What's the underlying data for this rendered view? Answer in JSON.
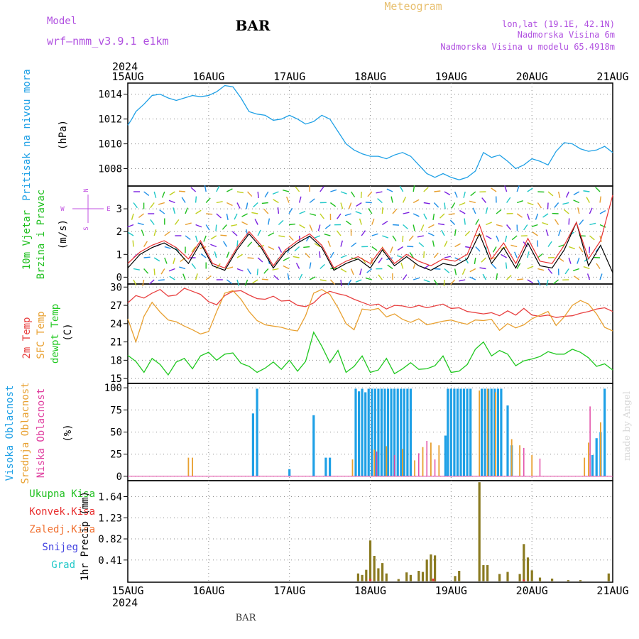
{
  "header": {
    "model_label": "Model",
    "model_name": "wrf–nmm_v3.9.1 e1km",
    "station": "BAR",
    "product": "Meteogram",
    "lonlat": "lon,lat (19.1E, 42.1N)",
    "altitude": "Nadmorska Visina 6m",
    "model_altitude": "Nadmorska Visina u modelu 65.4918m",
    "footer": "BAR",
    "credit": "made by Angel"
  },
  "time_axis": {
    "year": "2024",
    "ticks": [
      "15AUG",
      "16AUG",
      "17AUG",
      "18AUG",
      "19AUG",
      "20AUG",
      "21AUG"
    ]
  },
  "colors": {
    "pressure": "#1ea0e6",
    "wind_speed": "#000000",
    "wind_gust": "#e83030",
    "temp2m": "#e84040",
    "sfc_temp": "#e8a030",
    "dewpt": "#20c820",
    "cloud_high": "#1ea0e6",
    "cloud_mid": "#e8a030",
    "cloud_low": "#e040a0",
    "precip_total": "#20c020",
    "precip_conv": "#e83030",
    "precip_frozen": "#f07030",
    "snow": "#4040e0",
    "hail": "#20c8c8"
  },
  "chart_data": [
    {
      "type": "line",
      "panel": "pressure",
      "ylabel_primary": "Pritisak na nivou mora",
      "ylabel_unit": "(hPa)",
      "ylim": [
        1006.6,
        1014.9
      ],
      "yticks": [
        "1008",
        "1010",
        "1012",
        "1014"
      ],
      "x_days": [
        0.0,
        0.05,
        0.1,
        0.2,
        0.3,
        0.4,
        0.5,
        0.6,
        0.7,
        0.8,
        0.9,
        1.0,
        1.1,
        1.2,
        1.3,
        1.4,
        1.5,
        1.6,
        1.7,
        1.8,
        1.9,
        2.0,
        2.1,
        2.2,
        2.3,
        2.4,
        2.5,
        2.6,
        2.7,
        2.8,
        2.9,
        3.0,
        3.1,
        3.2,
        3.3,
        3.4,
        3.5,
        3.6,
        3.7,
        3.8,
        3.9,
        4.0,
        4.1,
        4.2,
        4.3,
        4.4,
        4.5,
        4.6,
        4.7,
        4.8,
        4.9,
        5.0,
        5.1,
        5.2,
        5.3,
        5.4,
        5.5,
        5.6,
        5.7,
        5.8,
        5.9,
        6.0
      ],
      "series": [
        {
          "values": [
            1011.5,
            1012.0,
            1012.6,
            1013.2,
            1013.9,
            1014.0,
            1013.7,
            1013.5,
            1013.7,
            1013.9,
            1013.8,
            1013.9,
            1014.2,
            1014.7,
            1014.6,
            1013.7,
            1012.6,
            1012.4,
            1012.3,
            1011.9,
            1012.0,
            1012.3,
            1012.0,
            1011.6,
            1011.8,
            1012.3,
            1012.0,
            1011.0,
            1010.0,
            1009.5,
            1009.2,
            1009.0,
            1009.0,
            1008.8,
            1009.1,
            1009.3,
            1009.0,
            1008.3,
            1007.6,
            1007.3,
            1007.6,
            1007.3,
            1007.1,
            1007.3,
            1007.8,
            1009.3,
            1008.9,
            1009.1,
            1008.6,
            1008.0,
            1008.3,
            1008.8,
            1008.6,
            1008.3,
            1009.4,
            1010.1,
            1010.0,
            1009.6,
            1009.4,
            1009.5,
            1009.8,
            1009.3
          ]
        }
      ]
    },
    {
      "type": "line",
      "panel": "wind",
      "ylabel_primary": "10m Vjetar",
      "ylabel_secondary": "Brzina i Pravac",
      "ylabel_unit": "(m/s)",
      "compass": {
        "north": "N",
        "west": "W",
        "east": "E",
        "south": "S"
      },
      "ylim": [
        -0.3,
        4.0
      ],
      "yticks": [
        "0",
        "1",
        "2",
        "3"
      ],
      "x_days": [
        0.0,
        0.15,
        0.3,
        0.45,
        0.6,
        0.75,
        0.9,
        1.05,
        1.2,
        1.35,
        1.5,
        1.65,
        1.8,
        1.95,
        2.1,
        2.25,
        2.4,
        2.55,
        2.7,
        2.85,
        3.0,
        3.15,
        3.3,
        3.45,
        3.6,
        3.75,
        3.9,
        4.05,
        4.2,
        4.35,
        4.5,
        4.65,
        4.8,
        4.95,
        5.1,
        5.25,
        5.4,
        5.55,
        5.7,
        5.85,
        6.0
      ],
      "series": [
        {
          "name": "speed",
          "values": [
            0.4,
            1.0,
            1.3,
            1.5,
            1.2,
            0.6,
            1.5,
            0.5,
            0.3,
            1.2,
            1.9,
            1.3,
            0.4,
            1.1,
            1.5,
            1.8,
            1.3,
            0.3,
            0.6,
            0.8,
            0.4,
            1.2,
            0.5,
            0.9,
            0.5,
            0.3,
            0.6,
            0.5,
            0.8,
            1.9,
            0.6,
            1.3,
            0.4,
            1.5,
            0.5,
            0.4,
            1.2,
            2.4,
            0.5,
            1.4,
            0.2
          ]
        },
        {
          "name": "gust",
          "values": [
            0.6,
            1.1,
            1.4,
            1.6,
            1.3,
            0.8,
            1.6,
            0.6,
            0.4,
            1.3,
            2.0,
            1.4,
            0.5,
            1.2,
            1.6,
            1.9,
            1.4,
            0.4,
            0.7,
            0.9,
            0.6,
            1.3,
            0.6,
            1.0,
            0.7,
            0.5,
            0.8,
            0.7,
            1.0,
            2.3,
            0.8,
            1.5,
            0.6,
            1.7,
            0.7,
            0.6,
            1.4,
            2.4,
            0.8,
            1.6,
            3.6
          ]
        }
      ]
    },
    {
      "type": "line",
      "panel": "temperature",
      "ylabels": [
        "2m Temp",
        "SFC Temp",
        "dewpt Temp"
      ],
      "ylabel_unit": "(C)",
      "ylim": [
        14.2,
        30.5
      ],
      "yticks": [
        "15",
        "18",
        "21",
        "24",
        "27",
        "30"
      ],
      "x_days": [
        0.0,
        0.1,
        0.2,
        0.3,
        0.4,
        0.5,
        0.6,
        0.7,
        0.8,
        0.9,
        1.0,
        1.1,
        1.2,
        1.3,
        1.4,
        1.5,
        1.6,
        1.7,
        1.8,
        1.9,
        2.0,
        2.1,
        2.2,
        2.3,
        2.4,
        2.5,
        2.6,
        2.7,
        2.8,
        2.9,
        3.0,
        3.1,
        3.2,
        3.3,
        3.4,
        3.5,
        3.6,
        3.7,
        3.8,
        3.9,
        4.0,
        4.1,
        4.2,
        4.3,
        4.4,
        4.5,
        4.6,
        4.7,
        4.8,
        4.9,
        5.0,
        5.1,
        5.2,
        5.3,
        5.4,
        5.5,
        5.6,
        5.7,
        5.8,
        5.9,
        6.0
      ],
      "series": [
        {
          "name": "2m Temp",
          "values": [
            27.4,
            28.6,
            28.2,
            29.0,
            29.6,
            28.5,
            28.7,
            29.8,
            29.3,
            28.8,
            27.6,
            27.1,
            28.6,
            29.3,
            29.4,
            28.7,
            28.1,
            28.0,
            28.5,
            27.7,
            27.8,
            27.0,
            26.8,
            27.4,
            28.7,
            29.3,
            28.9,
            28.6,
            28.0,
            27.5,
            27.0,
            27.2,
            26.4,
            27.0,
            26.9,
            26.6,
            27.0,
            26.6,
            26.9,
            27.2,
            26.5,
            26.6,
            26.0,
            25.8,
            25.6,
            25.8,
            25.3,
            26.1,
            25.4,
            26.5,
            25.4,
            25.2,
            25.4,
            25.0,
            25.2,
            25.3,
            25.7,
            26.0,
            26.4,
            26.6,
            26.0
          ]
        },
        {
          "name": "SFC Temp",
          "values": [
            24.8,
            21.0,
            25.2,
            27.5,
            25.9,
            24.6,
            24.3,
            23.6,
            23.0,
            22.3,
            22.7,
            26.0,
            29.0,
            29.4,
            28.0,
            26.0,
            24.5,
            23.8,
            23.6,
            23.4,
            23.0,
            22.8,
            25.3,
            29.0,
            29.6,
            28.8,
            26.6,
            24.0,
            23.0,
            26.4,
            26.2,
            26.5,
            25.1,
            25.6,
            24.7,
            24.2,
            24.8,
            23.8,
            24.1,
            24.4,
            24.6,
            24.2,
            23.9,
            24.6,
            24.5,
            24.7,
            22.9,
            24.0,
            23.3,
            23.8,
            24.8,
            25.4,
            26.0,
            23.7,
            25.1,
            27.0,
            27.8,
            27.2,
            25.6,
            23.4,
            22.8
          ]
        },
        {
          "name": "dewpt Temp",
          "values": [
            18.8,
            17.8,
            16.0,
            18.3,
            17.3,
            15.6,
            17.7,
            18.3,
            16.6,
            18.7,
            19.3,
            18.0,
            19.0,
            19.2,
            17.5,
            17.0,
            16.0,
            16.7,
            17.7,
            16.5,
            18.0,
            16.2,
            17.8,
            22.6,
            20.3,
            17.6,
            19.6,
            16.0,
            17.0,
            18.7,
            16.0,
            16.4,
            18.3,
            15.8,
            16.6,
            17.6,
            16.5,
            16.6,
            17.1,
            18.7,
            16.0,
            16.2,
            17.3,
            19.8,
            21.0,
            18.7,
            19.6,
            19.0,
            17.1,
            17.9,
            18.2,
            18.6,
            19.4,
            19.0,
            19.0,
            19.8,
            19.3,
            18.4,
            17.0,
            17.4,
            16.4
          ]
        }
      ]
    },
    {
      "type": "bar",
      "panel": "clouds",
      "ylabels": [
        "Visoka Oblacnost",
        "Srednja Oblacnost",
        "Niska Oblacnost"
      ],
      "ylabel_unit": "(%)",
      "ylim": [
        -5,
        105
      ],
      "yticks": [
        "0",
        "25",
        "50",
        "75",
        "100"
      ],
      "series": [
        {
          "name": "Visoka Oblacnost",
          "points": [
            [
              1.55,
              71
            ],
            [
              1.6,
              99
            ],
            [
              2.0,
              8
            ],
            [
              2.3,
              69
            ],
            [
              2.45,
              21
            ],
            [
              2.5,
              21
            ],
            [
              2.82,
              99
            ],
            [
              2.86,
              96
            ],
            [
              2.9,
              99
            ],
            [
              2.94,
              95
            ],
            [
              2.98,
              99
            ],
            [
              3.02,
              99
            ],
            [
              3.06,
              99
            ],
            [
              3.1,
              99
            ],
            [
              3.14,
              99
            ],
            [
              3.18,
              99
            ],
            [
              3.22,
              99
            ],
            [
              3.26,
              99
            ],
            [
              3.3,
              99
            ],
            [
              3.34,
              99
            ],
            [
              3.38,
              99
            ],
            [
              3.42,
              99
            ],
            [
              3.46,
              99
            ],
            [
              3.5,
              99
            ],
            [
              3.93,
              46
            ],
            [
              3.96,
              99
            ],
            [
              4.0,
              99
            ],
            [
              4.04,
              99
            ],
            [
              4.08,
              99
            ],
            [
              4.12,
              99
            ],
            [
              4.16,
              99
            ],
            [
              4.2,
              99
            ],
            [
              4.24,
              99
            ],
            [
              4.38,
              99
            ],
            [
              4.42,
              99
            ],
            [
              4.46,
              99
            ],
            [
              4.5,
              99
            ],
            [
              4.54,
              99
            ],
            [
              4.58,
              99
            ],
            [
              4.62,
              99
            ],
            [
              4.7,
              80
            ],
            [
              4.75,
              35
            ],
            [
              5.75,
              24
            ],
            [
              5.8,
              43
            ],
            [
              5.85,
              50
            ],
            [
              5.9,
              99
            ]
          ]
        },
        {
          "name": "Srednja Oblacnost",
          "points": [
            [
              0.75,
              21
            ],
            [
              0.8,
              21
            ],
            [
              2.78,
              19
            ],
            [
              3.05,
              30
            ],
            [
              3.2,
              34
            ],
            [
              3.4,
              31
            ],
            [
              3.55,
              18
            ],
            [
              3.65,
              33
            ],
            [
              3.75,
              38
            ],
            [
              3.85,
              35
            ],
            [
              4.35,
              97
            ],
            [
              4.45,
              99
            ],
            [
              4.55,
              95
            ],
            [
              4.75,
              42
            ],
            [
              4.85,
              35
            ],
            [
              5.0,
              24
            ],
            [
              5.85,
              61
            ],
            [
              5.65,
              21
            ],
            [
              5.7,
              38
            ]
          ]
        },
        {
          "name": "Niska Oblacnost",
          "points": [
            [
              3.08,
              28
            ],
            [
              3.3,
              24
            ],
            [
              3.6,
              26
            ],
            [
              3.7,
              40
            ],
            [
              3.8,
              19
            ],
            [
              4.9,
              32
            ],
            [
              5.1,
              20
            ],
            [
              5.72,
              79
            ]
          ]
        }
      ]
    },
    {
      "type": "bar",
      "panel": "precip",
      "legend": [
        "Ukupna Kisa",
        "Konvek.Kisa",
        "Zaledj.Kisa",
        "Snijeg",
        "Grad"
      ],
      "ylabel_unit": "1hr Precip (mm)",
      "ylim": [
        -0.02,
        1.95
      ],
      "yticks": [
        "0.41",
        "0.82",
        "1.23",
        "1.64"
      ],
      "series": [
        {
          "name": "Ukupna Kisa",
          "points": [
            [
              2.85,
              0.15
            ],
            [
              2.9,
              0.12
            ],
            [
              2.95,
              0.22
            ],
            [
              3.0,
              0.79
            ],
            [
              3.05,
              0.49
            ],
            [
              3.1,
              0.25
            ],
            [
              3.15,
              0.35
            ],
            [
              3.2,
              0.15
            ],
            [
              3.35,
              0.04
            ],
            [
              3.45,
              0.17
            ],
            [
              3.5,
              0.12
            ],
            [
              3.6,
              0.2
            ],
            [
              3.65,
              0.18
            ],
            [
              3.7,
              0.42
            ],
            [
              3.75,
              0.52
            ],
            [
              3.8,
              0.5
            ],
            [
              4.05,
              0.1
            ],
            [
              4.1,
              0.2
            ],
            [
              4.35,
              1.92
            ],
            [
              4.4,
              0.31
            ],
            [
              4.45,
              0.31
            ],
            [
              4.6,
              0.14
            ],
            [
              4.7,
              0.18
            ],
            [
              4.85,
              0.14
            ],
            [
              4.9,
              0.72
            ],
            [
              4.95,
              0.46
            ],
            [
              5.0,
              0.21
            ],
            [
              5.1,
              0.07
            ],
            [
              5.25,
              0.05
            ],
            [
              5.45,
              0.02
            ],
            [
              5.6,
              0.02
            ],
            [
              5.95,
              0.15
            ]
          ]
        },
        {
          "name": "Konvek.Kisa",
          "points": [
            [
              3.0,
              0.04
            ],
            [
              3.78,
              0.05
            ],
            [
              4.9,
              0.03
            ]
          ]
        }
      ]
    }
  ]
}
